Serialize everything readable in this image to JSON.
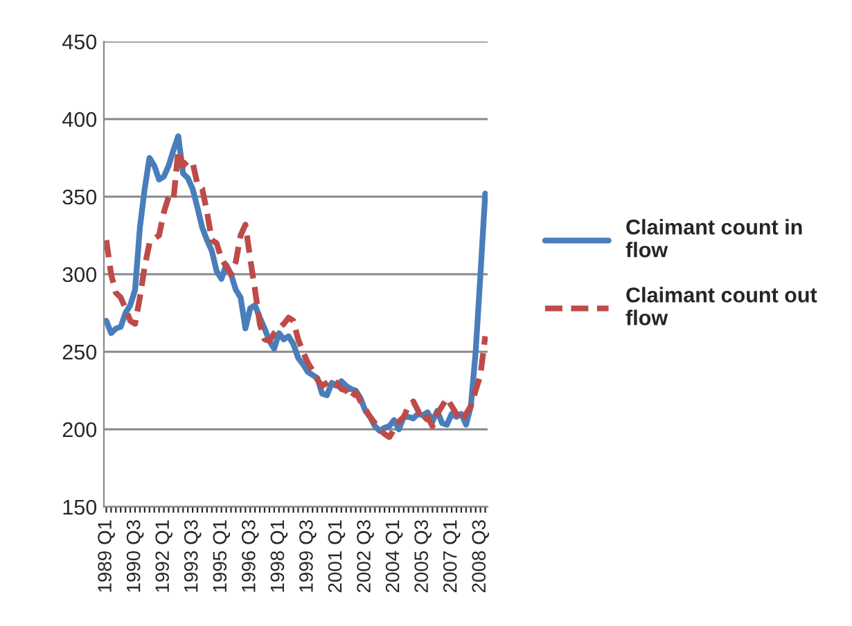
{
  "chart_data": {
    "type": "line",
    "categories": [
      "1989 Q1",
      null,
      null,
      null,
      null,
      null,
      "1990 Q3",
      null,
      null,
      null,
      null,
      null,
      "1992 Q1",
      null,
      null,
      null,
      null,
      null,
      "1993 Q3",
      null,
      null,
      null,
      null,
      null,
      "1995 Q1",
      null,
      null,
      null,
      null,
      null,
      "1996 Q3",
      null,
      null,
      null,
      null,
      null,
      "1998 Q1",
      null,
      null,
      null,
      null,
      null,
      "1999 Q3",
      null,
      null,
      null,
      null,
      null,
      "2001 Q1",
      null,
      null,
      null,
      null,
      null,
      "2002 Q3",
      null,
      null,
      null,
      null,
      null,
      "2004 Q1",
      null,
      null,
      null,
      null,
      null,
      "2005 Q3",
      null,
      null,
      null,
      null,
      null,
      "2007 Q1",
      null,
      null,
      null,
      null,
      null,
      "2008 Q3",
      null
    ],
    "series": [
      {
        "name": "Claimant count in flow",
        "color": "#4a7ebb",
        "line_style": "solid",
        "values": [
          270,
          262,
          265,
          266,
          275,
          280,
          290,
          330,
          355,
          375,
          370,
          361,
          363,
          370,
          380,
          389,
          365,
          362,
          355,
          343,
          330,
          322,
          315,
          302,
          297,
          306,
          300,
          290,
          285,
          265,
          278,
          280,
          272,
          265,
          257,
          252,
          262,
          258,
          260,
          255,
          246,
          242,
          237,
          235,
          233,
          223,
          222,
          230,
          228,
          231,
          228,
          226,
          225,
          220,
          212,
          208,
          202,
          199,
          201,
          202,
          206,
          200,
          208,
          208,
          207,
          210,
          209,
          211,
          205,
          212,
          204,
          203,
          210,
          208,
          210,
          203,
          215,
          250,
          300,
          352
        ]
      },
      {
        "name": "Claimant count out flow",
        "color": "#be4b48",
        "line_style": "dashed",
        "values": [
          322,
          300,
          288,
          285,
          278,
          270,
          268,
          285,
          305,
          320,
          323,
          325,
          340,
          350,
          348,
          380,
          370,
          373,
          372,
          358,
          355,
          340,
          322,
          320,
          310,
          305,
          300,
          308,
          325,
          332,
          310,
          290,
          268,
          258,
          257,
          262,
          265,
          268,
          272,
          270,
          258,
          250,
          243,
          238,
          232,
          228,
          230,
          232,
          230,
          226,
          225,
          220,
          224,
          218,
          213,
          208,
          204,
          200,
          197,
          195,
          200,
          205,
          208,
          215,
          218,
          212,
          205,
          208,
          202,
          210,
          215,
          220,
          215,
          210,
          205,
          210,
          215,
          225,
          235,
          260
        ]
      }
    ],
    "ylim": [
      150,
      450
    ],
    "yticks": [
      150,
      200,
      250,
      300,
      350,
      400,
      450
    ],
    "grid": "y",
    "legend": "right"
  }
}
